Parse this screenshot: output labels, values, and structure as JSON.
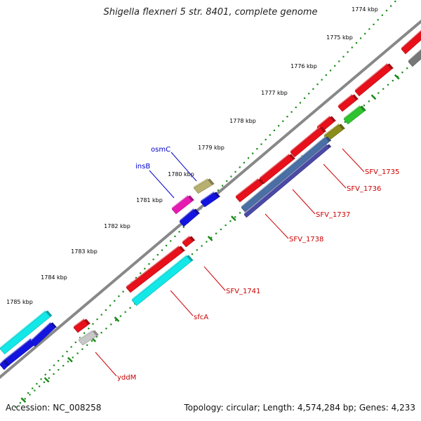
{
  "title": "Shigella flexneri 5 str. 8401, complete genome",
  "footer": {
    "accession": "Accession: NC_008258",
    "stats": "Topology: circular; Length: 4,574,284 bp; Genes: 4,233"
  },
  "kbp_ticks": [
    "1774 kbp",
    "1775 kbp",
    "1776 kbp",
    "1777 kbp",
    "1778 kbp",
    "1779 kbp",
    "1780 kbp",
    "1781 kbp",
    "1782 kbp",
    "1783 kbp",
    "1784 kbp",
    "1785 kbp"
  ],
  "gene_labels": [
    {
      "name": "osmC",
      "color": "blue"
    },
    {
      "name": "insB",
      "color": "blue"
    },
    {
      "name": "SFV_1735",
      "color": "red"
    },
    {
      "name": "SFV_1736",
      "color": "red"
    },
    {
      "name": "SFV_1737",
      "color": "red"
    },
    {
      "name": "SFV_1738",
      "color": "red"
    },
    {
      "name": "SFV_1741",
      "color": "red"
    },
    {
      "name": "sfcA",
      "color": "red"
    },
    {
      "name": "yddM",
      "color": "red"
    }
  ],
  "colors": {
    "red": "#e8101a",
    "cyan": "#13e8e8",
    "blue": "#1414e0",
    "steel": "#4a6fa5",
    "indigo": "#4a4aa8",
    "green": "#2ec42e",
    "olive": "#8c8c1a",
    "magenta": "#e81ab4",
    "khaki": "#b8b070",
    "gray": "#777777",
    "lightgray": "#c8c8c8",
    "tickgreen": "#1a8a1a",
    "labelblue": "#0000cc",
    "labelred": "#cc0000",
    "backbone": "#888888"
  }
}
